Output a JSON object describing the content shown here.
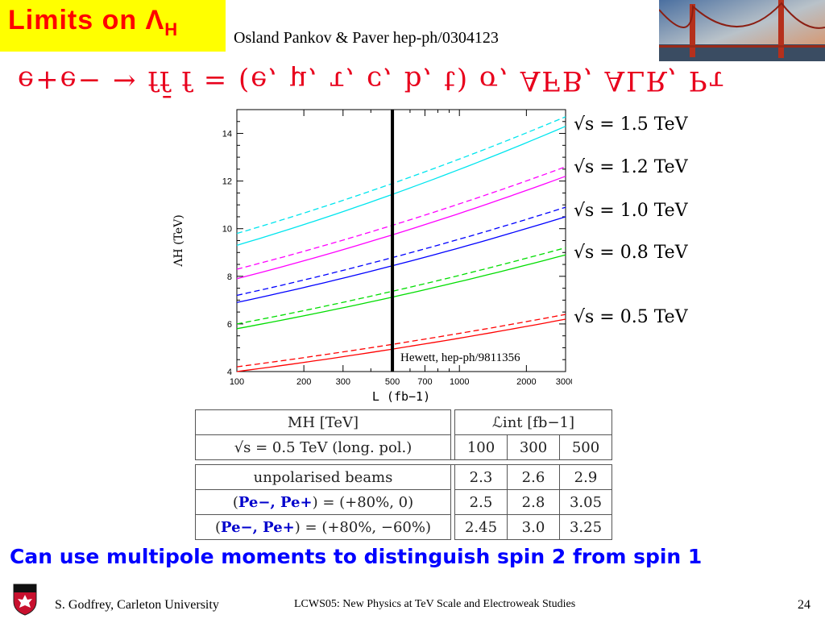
{
  "header": {
    "title_main": "Limits on Λ",
    "title_sub": "H",
    "reference": "Osland Pankov & Paver hep-ph/0304123",
    "accent_color": "#ff0000",
    "title_bg": "#ffff00"
  },
  "process_line": "e+e− → ff̄    f = (e, μ, τ, c, b, t)   σ,   AFB,   ALR,   Pτ",
  "chart_data": {
    "type": "line",
    "xlabel": "L (fb−1)",
    "ylabel": "ΛH (TeV)",
    "x_scale": "log",
    "xlim": [
      100,
      3000
    ],
    "ylim": [
      4,
      15
    ],
    "x_ticks": [
      100,
      200,
      300,
      500,
      700,
      1000,
      2000,
      3000
    ],
    "y_ticks": [
      4,
      6,
      8,
      10,
      12,
      14
    ],
    "vertical_line_x": 500,
    "annotation": "Hewett, hep-ph/9811356",
    "series": [
      {
        "name": "√s = 1.5 TeV",
        "color": "#00e5ee",
        "solid": [
          [
            100,
            9.3
          ],
          [
            3000,
            14.3
          ]
        ],
        "dashed": [
          [
            100,
            9.8
          ],
          [
            3000,
            14.7
          ]
        ]
      },
      {
        "name": "√s = 1.2 TeV",
        "color": "#ff00ff",
        "solid": [
          [
            100,
            7.9
          ],
          [
            3000,
            12.2
          ]
        ],
        "dashed": [
          [
            100,
            8.3
          ],
          [
            3000,
            12.6
          ]
        ]
      },
      {
        "name": "√s = 1.0 TeV",
        "color": "#0000ff",
        "solid": [
          [
            100,
            6.9
          ],
          [
            3000,
            10.5
          ]
        ],
        "dashed": [
          [
            100,
            7.2
          ],
          [
            3000,
            10.9
          ]
        ]
      },
      {
        "name": "√s = 0.8 TeV",
        "color": "#00dd00",
        "solid": [
          [
            100,
            5.8
          ],
          [
            3000,
            8.9
          ]
        ],
        "dashed": [
          [
            100,
            6.0
          ],
          [
            3000,
            9.2
          ]
        ]
      },
      {
        "name": "√s = 0.5 TeV",
        "color": "#ff0000",
        "solid": [
          [
            100,
            4.0
          ],
          [
            3000,
            6.2
          ]
        ],
        "dashed": [
          [
            100,
            4.2
          ],
          [
            3000,
            6.4
          ]
        ]
      }
    ]
  },
  "energy_labels": [
    {
      "text": "√s = 1.5 TeV",
      "color": "#0000ff"
    },
    {
      "text": "√s = 1.2 TeV",
      "color": "#ff0000"
    },
    {
      "text": "√s = 1.0 TeV",
      "color": "#0000ff"
    },
    {
      "text": "√s = 0.8 TeV",
      "color": "#00dd00"
    },
    {
      "text": "√s = 0.5 TeV",
      "color": "#ff0000"
    }
  ],
  "table": {
    "header_mh": "MH [TeV]",
    "header_energy": "√s = 0.5 TeV (long. pol.)",
    "header_lint": "ℒint [fb−1]",
    "columns": [
      "100",
      "300",
      "500"
    ],
    "rows": [
      {
        "label": "unpolarised beams",
        "values": [
          "2.3",
          "2.6",
          "2.9"
        ]
      },
      {
        "label_pre": "(",
        "label_bold": "Pe−, Pe+",
        "label_post": ") = (+80%, 0)",
        "values": [
          "2.5",
          "2.8",
          "3.05"
        ]
      },
      {
        "label_pre": "(",
        "label_bold": "Pe−, Pe+",
        "label_post": ") = (+80%, −60%)",
        "values": [
          "2.45",
          "3.0",
          "3.25"
        ]
      }
    ]
  },
  "bottom_text": "Can use multipole moments to distinguish spin 2 from spin 1",
  "footer": {
    "author": "S. Godfrey, Carleton University",
    "conference": "LCWS05: New Physics at TeV Scale and Electroweak Studies",
    "page": "24"
  }
}
